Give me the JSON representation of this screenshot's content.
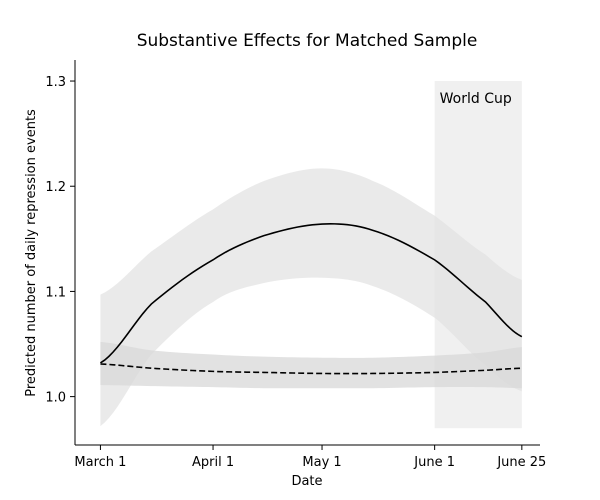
{
  "chart_data": {
    "type": "line",
    "title": "Substantive Effects for Matched Sample",
    "xlabel": "Date",
    "ylabel": "Predicted number of daily repression events",
    "x_ticks": [
      "March 1",
      "April 1",
      "May 1",
      "June 1",
      "June 25"
    ],
    "x_tick_values": [
      "2014-03-01",
      "2014-04-01",
      "2014-05-01",
      "2014-06-01",
      "2014-06-25"
    ],
    "xlim": [
      "2014-02-22",
      "2014-06-30"
    ],
    "y_ticks": [
      "1.0",
      "1.1",
      "1.2",
      "1.3"
    ],
    "y_tick_values": [
      1.0,
      1.1,
      1.2,
      1.3
    ],
    "ylim": [
      0.954,
      1.32
    ],
    "grid": false,
    "annotation": {
      "text": "World Cup",
      "start": "2014-06-01",
      "end": "2014-06-25",
      "y_range": [
        0.97,
        1.3
      ],
      "color": "#f0f0f0"
    },
    "series": [
      {
        "style": "solid",
        "color": "#000000",
        "band_color": "#e3e3e3",
        "x": [
          "2014-03-01",
          "2014-03-15",
          "2014-04-01",
          "2014-04-15",
          "2014-05-01",
          "2014-05-15",
          "2014-06-01",
          "2014-06-15",
          "2014-06-25"
        ],
        "y": [
          1.032,
          1.088,
          1.13,
          1.153,
          1.164,
          1.158,
          1.13,
          1.09,
          1.057
        ],
        "lower": [
          0.972,
          1.04,
          1.09,
          1.108,
          1.113,
          1.105,
          1.075,
          1.03,
          1.005
        ],
        "upper": [
          1.097,
          1.138,
          1.178,
          1.205,
          1.217,
          1.205,
          1.172,
          1.135,
          1.111
        ]
      },
      {
        "style": "dashed",
        "color": "#000000",
        "band_color": "#d8d8d8",
        "x": [
          "2014-03-01",
          "2014-03-15",
          "2014-04-01",
          "2014-04-15",
          "2014-05-01",
          "2014-05-15",
          "2014-06-01",
          "2014-06-15",
          "2014-06-25"
        ],
        "y": [
          1.031,
          1.027,
          1.024,
          1.023,
          1.022,
          1.022,
          1.023,
          1.025,
          1.027
        ],
        "lower": [
          1.011,
          1.01,
          1.009,
          1.008,
          1.008,
          1.008,
          1.009,
          1.009,
          1.008
        ],
        "upper": [
          1.052,
          1.044,
          1.04,
          1.038,
          1.037,
          1.037,
          1.039,
          1.042,
          1.047
        ]
      }
    ]
  }
}
